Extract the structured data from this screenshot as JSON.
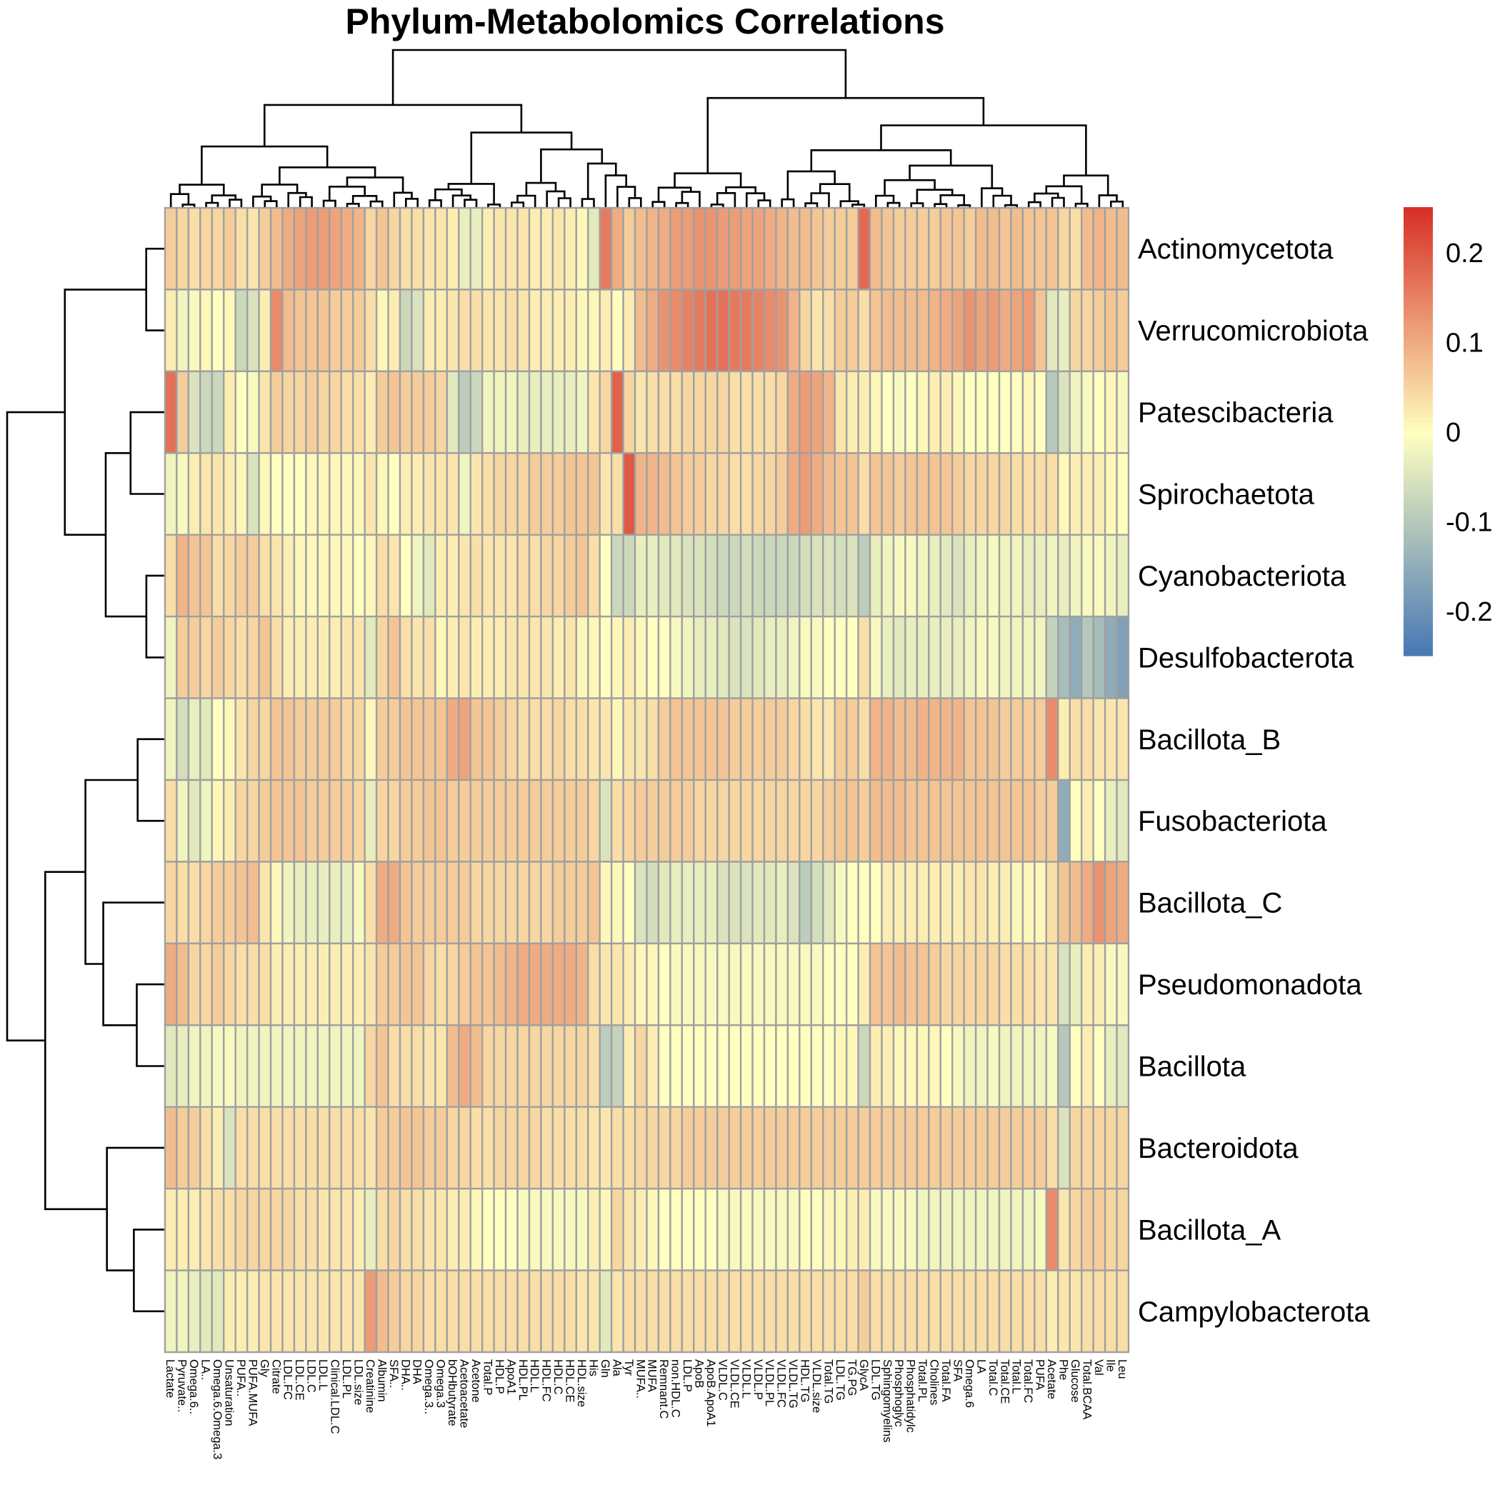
{
  "chart_data": {
    "type": "heatmap",
    "title": "Phylum-Metabolomics Correlations",
    "rows": [
      "Actinomycetota",
      "Verrucomicrobiota",
      "Patescibacteria",
      "Spirochaetota",
      "Cyanobacteriota",
      "Desulfobacterota",
      "Bacillota_B",
      "Fusobacteriota",
      "Bacillota_C",
      "Pseudomonadota",
      "Bacillota",
      "Bacteroidota",
      "Bacillota_A",
      "Campylobacterota"
    ],
    "columns": [
      "Lactate",
      "Pyruvate..",
      "Omega.6..",
      "LA..",
      "Omega.6.Omega.3",
      "Unsaturation",
      "PUFA..",
      "PUFA.MUFA",
      "Gly",
      "Citrate",
      "LDL.FC",
      "LDL.CE",
      "LDL.C",
      "LDL.L",
      "Clinical.LDL.C",
      "LDL.PL",
      "LDL.size",
      "Creatinine",
      "Albumin",
      "SFA..",
      "DHA..",
      "DHA",
      "Omega.3..",
      "Omega.3",
      "bOHbutyrate",
      "Acetoacetate",
      "Acetone",
      "Total.P",
      "HDL.P",
      "ApoA1",
      "HDL.PL",
      "HDL.L",
      "HDL.FC",
      "HDL.C",
      "HDL.CE",
      "HDL.size",
      "His",
      "Gln",
      "Ala",
      "Tyr",
      "MUFA..",
      "MUFA",
      "Remnant.C",
      "non.HDL.C",
      "LDL.P",
      "ApoB",
      "ApoB.ApoA1",
      "VLDL.C",
      "VLDL.CE",
      "VLDL.L",
      "VLDL.P",
      "VLDL.PL",
      "VLDL.FC",
      "VLDL.TG",
      "HDL.TG",
      "VLDL.size",
      "Total.TG",
      "LDL.TG",
      "TG.PG",
      "GlycA",
      "LDL.TG",
      "Sphingomyelins",
      "Phosphoglyc",
      "Phosphatidylc",
      "Total.PL",
      "Cholines",
      "Total.FA",
      "SFA",
      "Omega.6",
      "LA",
      "Total.C",
      "Total.CE",
      "Total.L",
      "Total.FC",
      "PUFA",
      "Acetate",
      "Phe",
      "Glucose",
      "Total.BCAA",
      "Val",
      "Ile",
      "Leu"
    ],
    "values": [
      [
        0.06,
        0.05,
        0.04,
        0.05,
        0.05,
        0.06,
        0.04,
        0.03,
        0.06,
        0.08,
        0.1,
        0.11,
        0.12,
        0.12,
        0.11,
        0.1,
        0.09,
        0.05,
        0.07,
        0.05,
        0.04,
        0.04,
        0.03,
        0.03,
        0.02,
        -0.03,
        -0.03,
        0.02,
        0.03,
        0.03,
        0.03,
        0.02,
        0.02,
        0.03,
        0.02,
        0.01,
        -0.04,
        0.16,
        0.1,
        0.06,
        0.08,
        0.09,
        0.1,
        0.12,
        0.12,
        0.13,
        0.13,
        0.12,
        0.12,
        0.11,
        0.11,
        0.1,
        0.09,
        0.08,
        0.08,
        0.07,
        0.06,
        0.06,
        0.06,
        0.18,
        0.08,
        0.07,
        0.06,
        0.06,
        0.06,
        0.06,
        0.07,
        0.07,
        0.06,
        0.08,
        0.08,
        0.07,
        0.08,
        0.07,
        0.07,
        0.07,
        0.05,
        0.04,
        0.08,
        0.09,
        0.08,
        0.08
      ],
      [
        0.02,
        -0.02,
        -0.01,
        0.01,
        0.0,
        0.01,
        -0.07,
        -0.05,
        0.02,
        0.14,
        0.08,
        0.07,
        0.07,
        0.07,
        0.06,
        0.06,
        0.06,
        0.04,
        0.01,
        0.02,
        -0.07,
        -0.05,
        0.02,
        0.02,
        0.03,
        0.04,
        0.04,
        0.03,
        0.03,
        0.04,
        0.03,
        0.02,
        0.02,
        0.02,
        0.02,
        0.01,
        0.01,
        0.02,
        0.0,
        0.02,
        0.08,
        0.1,
        0.13,
        0.14,
        0.15,
        0.16,
        0.17,
        0.17,
        0.16,
        0.16,
        0.15,
        0.14,
        0.13,
        0.09,
        0.05,
        0.03,
        0.04,
        0.06,
        0.06,
        0.04,
        0.07,
        0.08,
        0.08,
        0.08,
        0.08,
        0.09,
        0.1,
        0.11,
        0.13,
        0.11,
        0.12,
        0.1,
        0.11,
        0.12,
        0.07,
        -0.04,
        -0.03,
        0.05,
        0.05,
        0.06,
        0.07,
        0.06
      ],
      [
        0.17,
        0.06,
        -0.05,
        -0.07,
        -0.07,
        0.02,
        0.0,
        -0.01,
        0.03,
        0.06,
        0.05,
        0.05,
        0.06,
        0.05,
        0.05,
        0.04,
        0.04,
        0.02,
        0.06,
        0.07,
        0.06,
        0.06,
        0.06,
        0.05,
        -0.04,
        -0.09,
        -0.07,
        -0.02,
        -0.02,
        -0.02,
        -0.03,
        -0.03,
        -0.03,
        -0.03,
        -0.03,
        -0.02,
        0.03,
        0.05,
        0.19,
        0.05,
        0.03,
        0.04,
        0.04,
        0.04,
        0.05,
        0.05,
        0.05,
        0.05,
        0.04,
        0.04,
        0.04,
        0.04,
        0.05,
        0.1,
        0.12,
        0.11,
        0.09,
        0.03,
        0.02,
        0.02,
        0.01,
        0.0,
        -0.01,
        0.0,
        0.01,
        0.02,
        0.02,
        0.01,
        0.0,
        0.0,
        0.0,
        0.0,
        0.0,
        0.01,
        0.0,
        -0.1,
        -0.05,
        -0.02,
        -0.01,
        0.0,
        0.01,
        -0.01
      ],
      [
        -0.02,
        -0.01,
        0.02,
        0.03,
        0.03,
        0.02,
        0.01,
        -0.05,
        0.01,
        0.0,
        0.0,
        0.0,
        0.01,
        0.01,
        0.01,
        0.01,
        0.01,
        0.03,
        0.01,
        0.0,
        0.02,
        0.02,
        0.03,
        0.03,
        0.03,
        -0.02,
        0.03,
        0.04,
        0.05,
        0.05,
        0.05,
        0.06,
        0.06,
        0.06,
        0.07,
        0.07,
        0.07,
        0.03,
        0.04,
        0.2,
        0.09,
        0.09,
        0.08,
        0.07,
        0.06,
        0.06,
        0.05,
        0.05,
        0.04,
        0.04,
        0.05,
        0.05,
        0.06,
        0.1,
        0.12,
        0.1,
        0.08,
        0.07,
        0.07,
        0.04,
        0.07,
        0.07,
        0.06,
        0.07,
        0.07,
        0.07,
        0.07,
        0.06,
        0.05,
        0.05,
        0.05,
        0.05,
        0.04,
        0.04,
        0.04,
        0.04,
        0.01,
        0.02,
        0.02,
        0.02,
        0.01,
        0.0
      ],
      [
        0.04,
        0.09,
        0.07,
        0.07,
        0.04,
        0.05,
        0.06,
        0.06,
        0.04,
        0.03,
        0.02,
        0.01,
        0.01,
        0.01,
        0.01,
        0.01,
        0.0,
        0.01,
        0.04,
        0.03,
        0.0,
        -0.02,
        -0.04,
        0.02,
        0.02,
        0.03,
        0.04,
        0.03,
        0.03,
        0.03,
        0.04,
        0.04,
        0.05,
        0.05,
        0.06,
        0.07,
        0.04,
        0.0,
        -0.07,
        -0.07,
        -0.03,
        -0.03,
        -0.04,
        -0.04,
        -0.05,
        -0.05,
        -0.06,
        -0.07,
        -0.07,
        -0.06,
        -0.07,
        -0.07,
        -0.07,
        -0.07,
        -0.06,
        -0.05,
        -0.05,
        -0.06,
        -0.05,
        -0.09,
        -0.03,
        -0.02,
        -0.01,
        -0.01,
        -0.02,
        -0.03,
        -0.04,
        -0.05,
        -0.03,
        -0.02,
        -0.01,
        -0.02,
        -0.02,
        -0.03,
        -0.03,
        -0.02,
        -0.03,
        -0.02,
        -0.01,
        -0.01,
        -0.02,
        -0.03
      ],
      [
        -0.02,
        0.06,
        0.06,
        0.05,
        0.06,
        0.05,
        0.04,
        0.05,
        0.07,
        0.04,
        0.02,
        0.02,
        0.02,
        0.02,
        0.02,
        0.03,
        0.03,
        -0.04,
        0.05,
        0.07,
        0.04,
        0.03,
        0.04,
        0.01,
        0.02,
        0.03,
        0.02,
        0.02,
        0.02,
        0.03,
        0.03,
        0.03,
        0.03,
        0.02,
        0.03,
        0.01,
        0.01,
        0.0,
        0.01,
        0.02,
        0.01,
        0.0,
        0.0,
        -0.01,
        -0.02,
        -0.03,
        -0.03,
        -0.04,
        -0.05,
        -0.05,
        -0.04,
        -0.03,
        -0.03,
        -0.02,
        -0.01,
        -0.01,
        0.0,
        0.0,
        0.0,
        0.04,
        -0.01,
        -0.03,
        -0.04,
        -0.03,
        -0.03,
        -0.03,
        -0.03,
        -0.03,
        -0.02,
        -0.01,
        -0.01,
        -0.02,
        -0.02,
        -0.02,
        -0.02,
        -0.08,
        -0.12,
        -0.15,
        -0.1,
        -0.12,
        -0.15,
        -0.17
      ],
      [
        -0.02,
        -0.06,
        -0.03,
        -0.04,
        0.0,
        0.01,
        0.03,
        0.05,
        0.05,
        0.07,
        0.07,
        0.06,
        0.06,
        0.06,
        0.06,
        0.05,
        0.05,
        0.01,
        0.06,
        0.06,
        0.07,
        0.07,
        0.07,
        0.07,
        0.1,
        0.11,
        0.07,
        0.07,
        0.06,
        0.05,
        0.04,
        0.04,
        0.04,
        0.05,
        0.04,
        0.04,
        0.03,
        0.03,
        0.01,
        0.03,
        0.03,
        0.04,
        0.06,
        0.07,
        0.07,
        0.07,
        0.07,
        0.07,
        0.06,
        0.06,
        0.06,
        0.06,
        0.06,
        0.05,
        0.04,
        0.03,
        0.03,
        0.06,
        0.06,
        0.04,
        0.09,
        0.09,
        0.08,
        0.08,
        0.09,
        0.09,
        0.09,
        0.09,
        0.07,
        0.07,
        0.07,
        0.06,
        0.06,
        0.06,
        0.06,
        0.14,
        0.02,
        0.04,
        0.04,
        0.03,
        0.03,
        0.03
      ],
      [
        0.04,
        -0.02,
        -0.04,
        -0.02,
        0.01,
        0.02,
        0.05,
        0.05,
        0.06,
        0.07,
        0.07,
        0.07,
        0.06,
        0.06,
        0.06,
        0.06,
        0.05,
        -0.03,
        0.05,
        0.05,
        0.06,
        0.06,
        0.07,
        0.07,
        0.06,
        0.06,
        0.06,
        0.06,
        0.06,
        0.06,
        0.06,
        0.06,
        0.06,
        0.06,
        0.06,
        0.06,
        0.05,
        -0.05,
        0.04,
        0.05,
        0.06,
        0.06,
        0.06,
        0.06,
        0.06,
        0.05,
        0.05,
        0.05,
        0.05,
        0.05,
        0.05,
        0.05,
        0.05,
        0.05,
        0.05,
        0.05,
        0.06,
        0.07,
        0.07,
        0.06,
        0.08,
        0.08,
        0.08,
        0.07,
        0.07,
        0.07,
        0.07,
        0.07,
        0.07,
        0.07,
        0.07,
        0.07,
        0.07,
        0.07,
        0.06,
        0.06,
        -0.15,
        0.0,
        0.02,
        0.0,
        -0.03,
        -0.04
      ],
      [
        0.05,
        0.04,
        0.04,
        0.05,
        0.06,
        0.06,
        0.07,
        0.08,
        0.03,
        0.01,
        -0.02,
        -0.03,
        -0.03,
        -0.03,
        -0.03,
        -0.03,
        -0.01,
        0.04,
        0.1,
        0.1,
        0.07,
        0.06,
        0.06,
        0.06,
        0.06,
        0.06,
        0.05,
        0.05,
        0.05,
        0.05,
        0.05,
        0.05,
        0.05,
        0.06,
        0.06,
        0.06,
        0.07,
        0.01,
        0.01,
        0.0,
        -0.05,
        -0.06,
        -0.04,
        -0.03,
        -0.03,
        -0.03,
        -0.03,
        -0.05,
        -0.05,
        -0.05,
        -0.04,
        -0.04,
        -0.03,
        -0.05,
        -0.09,
        -0.06,
        -0.04,
        -0.01,
        0.0,
        0.0,
        0.0,
        0.02,
        0.02,
        0.02,
        0.02,
        0.02,
        0.02,
        0.02,
        0.03,
        0.03,
        0.02,
        0.02,
        0.01,
        0.01,
        0.01,
        0.04,
        0.07,
        0.08,
        0.1,
        0.13,
        0.11,
        0.1
      ],
      [
        0.1,
        0.08,
        0.05,
        0.05,
        0.06,
        0.05,
        0.04,
        0.04,
        0.04,
        0.02,
        0.02,
        0.02,
        0.02,
        0.02,
        0.02,
        0.02,
        0.02,
        0.03,
        0.06,
        0.06,
        0.07,
        0.07,
        0.05,
        0.04,
        0.05,
        0.06,
        0.07,
        0.07,
        0.08,
        0.09,
        0.1,
        0.1,
        0.1,
        0.1,
        0.1,
        0.09,
        0.04,
        0.03,
        0.03,
        0.02,
        0.01,
        0.01,
        0.0,
        -0.01,
        -0.01,
        -0.01,
        -0.01,
        -0.01,
        -0.01,
        -0.01,
        -0.01,
        -0.01,
        -0.01,
        -0.01,
        -0.01,
        -0.01,
        0.0,
        0.0,
        0.0,
        0.02,
        0.07,
        0.07,
        0.08,
        0.07,
        0.07,
        0.06,
        0.05,
        0.05,
        0.05,
        0.05,
        0.05,
        0.04,
        0.04,
        0.04,
        0.03,
        0.03,
        -0.05,
        -0.03,
        0.02,
        0.02,
        -0.01,
        -0.01
      ],
      [
        -0.04,
        -0.03,
        -0.02,
        -0.02,
        -0.01,
        -0.01,
        -0.02,
        -0.02,
        -0.02,
        -0.02,
        -0.02,
        -0.02,
        -0.02,
        -0.02,
        -0.02,
        -0.02,
        -0.02,
        0.05,
        0.07,
        0.04,
        0.04,
        0.04,
        0.03,
        0.03,
        0.08,
        0.1,
        0.08,
        0.05,
        0.05,
        0.05,
        0.05,
        0.05,
        0.05,
        0.05,
        0.05,
        0.05,
        0.04,
        -0.09,
        -0.08,
        0.02,
        0.05,
        0.02,
        0.0,
        0.0,
        0.0,
        0.0,
        0.0,
        0.0,
        0.0,
        0.0,
        0.0,
        0.0,
        0.0,
        0.0,
        0.0,
        0.0,
        0.0,
        0.01,
        0.01,
        -0.07,
        0.02,
        0.02,
        0.01,
        0.01,
        0.01,
        0.01,
        0.0,
        -0.01,
        -0.02,
        -0.02,
        -0.01,
        -0.02,
        -0.02,
        -0.02,
        -0.02,
        -0.01,
        -0.1,
        0.0,
        0.02,
        0.0,
        -0.03,
        -0.04
      ],
      [
        0.08,
        0.06,
        0.06,
        0.04,
        0.02,
        -0.05,
        0.04,
        0.04,
        0.04,
        0.04,
        0.04,
        0.04,
        0.04,
        0.04,
        0.04,
        0.04,
        0.04,
        0.03,
        0.06,
        0.06,
        0.07,
        0.07,
        0.06,
        0.06,
        0.05,
        0.05,
        0.04,
        0.04,
        0.05,
        0.05,
        0.05,
        0.05,
        0.04,
        0.04,
        0.04,
        0.04,
        0.03,
        0.03,
        0.04,
        0.04,
        0.05,
        0.05,
        0.05,
        0.05,
        0.06,
        0.06,
        0.06,
        0.06,
        0.06,
        0.06,
        0.06,
        0.06,
        0.06,
        0.06,
        0.06,
        0.06,
        0.06,
        0.06,
        0.06,
        0.06,
        0.06,
        0.06,
        0.06,
        0.06,
        0.06,
        0.06,
        0.06,
        0.06,
        0.06,
        0.06,
        0.06,
        0.06,
        0.06,
        0.06,
        0.06,
        0.04,
        -0.05,
        0.05,
        0.05,
        0.05,
        0.05,
        0.05
      ],
      [
        0.02,
        0.02,
        0.02,
        0.03,
        0.04,
        0.04,
        0.05,
        0.05,
        0.05,
        0.05,
        0.05,
        0.04,
        0.04,
        0.03,
        0.03,
        0.03,
        0.02,
        -0.03,
        0.04,
        0.05,
        0.04,
        0.04,
        0.03,
        0.03,
        0.02,
        0.02,
        0.01,
        0.0,
        0.0,
        0.0,
        -0.01,
        -0.01,
        -0.01,
        -0.01,
        -0.01,
        -0.01,
        0.02,
        0.01,
        0.05,
        0.03,
        0.02,
        0.01,
        0.0,
        0.0,
        0.0,
        0.0,
        0.0,
        -0.01,
        -0.01,
        -0.01,
        -0.01,
        -0.01,
        -0.01,
        -0.01,
        0.0,
        0.0,
        0.01,
        0.01,
        0.02,
        0.02,
        -0.01,
        -0.01,
        -0.01,
        -0.01,
        -0.02,
        -0.02,
        -0.02,
        -0.02,
        -0.02,
        -0.02,
        -0.02,
        -0.02,
        -0.02,
        -0.02,
        -0.01,
        0.14,
        0.03,
        0.05,
        0.06,
        0.06,
        0.05,
        0.05
      ],
      [
        -0.02,
        -0.02,
        -0.03,
        -0.04,
        -0.04,
        0.02,
        0.02,
        0.02,
        0.03,
        0.03,
        0.03,
        0.03,
        0.03,
        0.03,
        0.03,
        0.03,
        0.03,
        0.12,
        0.08,
        0.06,
        0.05,
        0.05,
        0.04,
        0.04,
        0.04,
        0.04,
        0.04,
        0.04,
        0.04,
        0.04,
        0.04,
        0.04,
        0.04,
        0.04,
        0.04,
        0.03,
        0.03,
        -0.04,
        0.03,
        0.04,
        0.04,
        0.04,
        0.04,
        0.04,
        0.04,
        0.04,
        0.04,
        0.04,
        0.04,
        0.04,
        0.04,
        0.04,
        0.04,
        0.04,
        0.04,
        0.04,
        0.04,
        0.04,
        0.04,
        0.06,
        0.04,
        0.04,
        0.04,
        0.04,
        0.04,
        0.04,
        0.04,
        0.04,
        0.04,
        0.04,
        0.04,
        0.04,
        0.04,
        0.04,
        0.04,
        0.02,
        0.03,
        0.03,
        0.04,
        0.04,
        0.04,
        0.04
      ]
    ],
    "color_scale": {
      "min": -0.25,
      "max": 0.25,
      "low_color": "#4575b4",
      "mid_color": "#ffffbf",
      "high_color": "#d73027",
      "ticks": [
        0.2,
        0.1,
        0,
        -0.1,
        -0.2
      ],
      "tick_labels": [
        "0.2",
        "0.1",
        "0",
        "-0.1",
        "-0.2"
      ]
    },
    "grid": true,
    "grid_color": "#a0a0a0",
    "row_dendrogram": true,
    "column_dendrogram": true,
    "legend_position": "right"
  }
}
